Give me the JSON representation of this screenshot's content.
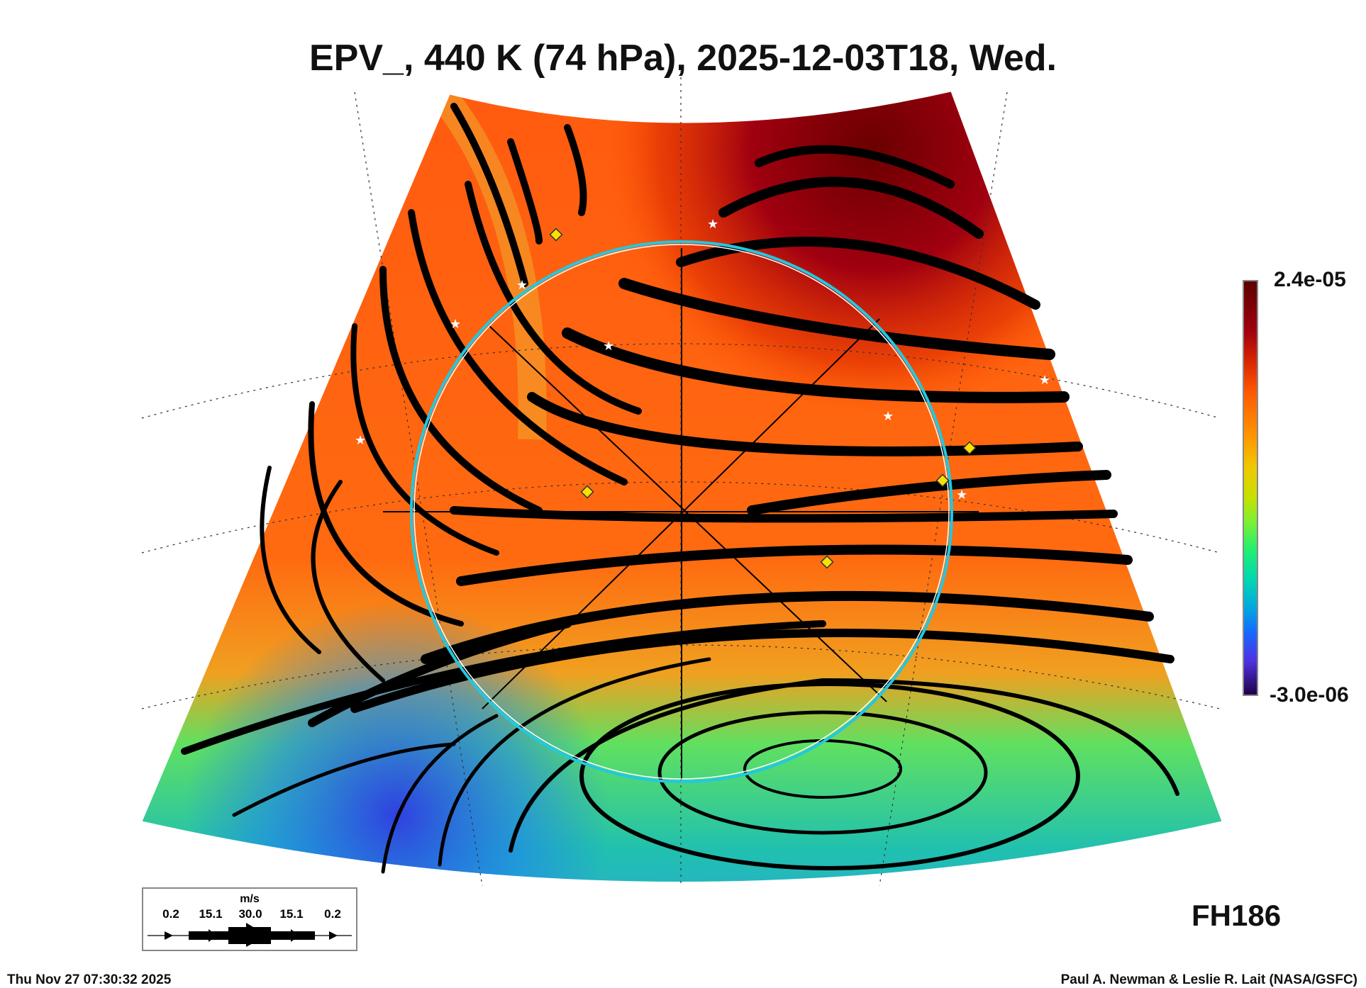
{
  "title": "EPV_, 440 K (74 hPa), 2025-12-03T18, Wed.",
  "colorbar": {
    "max_label": "2.4e-05",
    "min_label": "-3.0e-06"
  },
  "legend": {
    "unit": "m/s",
    "values": [
      "0.2",
      "15.1",
      "30.0",
      "15.1",
      "0.2"
    ]
  },
  "forecast_hour": "FH186",
  "footer": {
    "timestamp": "Thu Nov 27 07:30:32 2025",
    "credit": "Paul A. Newman & Leslie R. Lait (NASA/GSFC)"
  },
  "colors": {
    "high": "#5a0000",
    "mid": "#ff5a00",
    "low": "#20004a",
    "circle": "#22c8e0"
  }
}
